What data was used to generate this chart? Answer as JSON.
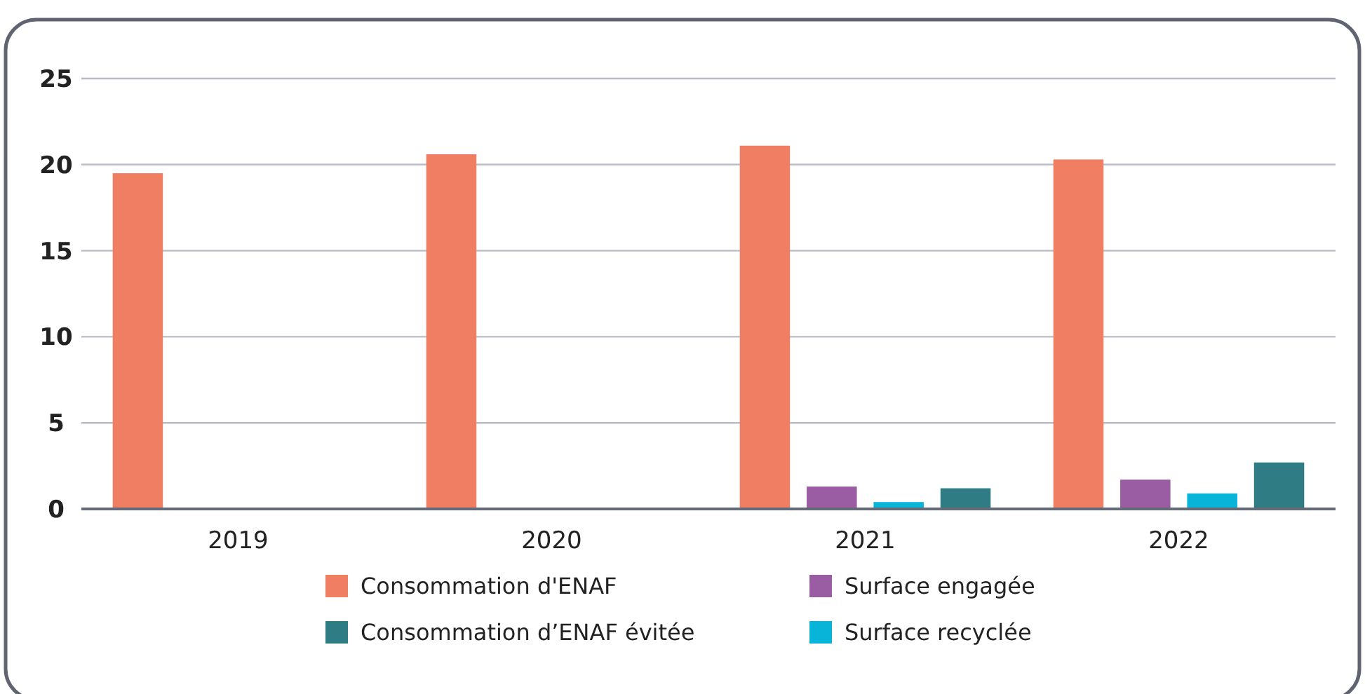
{
  "chart_data": {
    "type": "bar",
    "categories": [
      "2019",
      "2020",
      "2021",
      "2022"
    ],
    "series": [
      {
        "name": "Consommation d'ENAF",
        "color": "#ef7e63",
        "values": [
          19.5,
          20.6,
          21.1,
          20.3
        ]
      },
      {
        "name": "Surface engagée",
        "color": "#9a5ca2",
        "values": [
          null,
          null,
          1.3,
          1.7
        ]
      },
      {
        "name": "Surface recyclée",
        "color": "#08b5d9",
        "values": [
          null,
          null,
          0.4,
          0.9
        ]
      },
      {
        "name": "Consommation d’ENAF évitée",
        "color": "#2f7c85",
        "values": [
          null,
          null,
          1.2,
          2.7
        ]
      }
    ],
    "ylim": [
      0,
      25
    ],
    "yticks": [
      0,
      5,
      10,
      15,
      20,
      25
    ],
    "grid": "y",
    "legend": "bottom"
  }
}
